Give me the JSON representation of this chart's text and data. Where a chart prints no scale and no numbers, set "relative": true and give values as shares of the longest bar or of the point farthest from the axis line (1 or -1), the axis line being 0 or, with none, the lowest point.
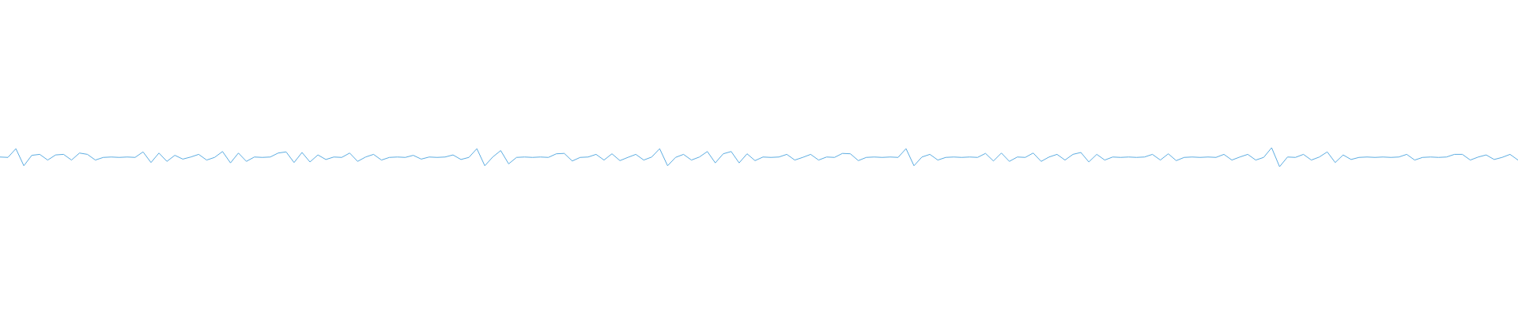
{
  "chart_data": {
    "type": "line",
    "relative": true,
    "categories": [
      null,
      null,
      null,
      null,
      null,
      null,
      null,
      null,
      null,
      null,
      null,
      null,
      null,
      null,
      null,
      null,
      null,
      null,
      null,
      null,
      null,
      null,
      null,
      null,
      null,
      null,
      null,
      null,
      null,
      null,
      null,
      null,
      null,
      null,
      null,
      null,
      null,
      null,
      null,
      null,
      null,
      null,
      null,
      null,
      null,
      null,
      null,
      null,
      null,
      null,
      null,
      null,
      null,
      null,
      null,
      null,
      null,
      null,
      null,
      null,
      null,
      null,
      null,
      null,
      null,
      null,
      null,
      null,
      null,
      null,
      null,
      null,
      null,
      null,
      null,
      null,
      null,
      null,
      null,
      null,
      null,
      null,
      null,
      null,
      null,
      null,
      null,
      null,
      null,
      null,
      null,
      null,
      null,
      null,
      null,
      null,
      null,
      null,
      null,
      null,
      null,
      null,
      null,
      null,
      null,
      null,
      null,
      null,
      null,
      null,
      null,
      null,
      null,
      null,
      null,
      null,
      null,
      null,
      null,
      null,
      null,
      null,
      null,
      null,
      null,
      null,
      null,
      null,
      null,
      null,
      null,
      null,
      null,
      null,
      null,
      null,
      null,
      null,
      null,
      null,
      null,
      null,
      null,
      null,
      null,
      null,
      null,
      null,
      null,
      null,
      null,
      null,
      null,
      null,
      null,
      null,
      null,
      null,
      null,
      null,
      null,
      null,
      null,
      null,
      null,
      null,
      null,
      null,
      null,
      null,
      null,
      null,
      null,
      null,
      null,
      null,
      null,
      null,
      null,
      null,
      null,
      null,
      null,
      null,
      null,
      null,
      null,
      null,
      null,
      null,
      null,
      null
    ],
    "series": [
      {
        "color": "#5dade2",
        "values": [
          0.51,
          0.49,
          0.95,
          0.05,
          0.6,
          0.65,
          0.35,
          0.62,
          0.65,
          0.35,
          0.72,
          0.65,
          0.35,
          0.49,
          0.51,
          0.49,
          0.51,
          0.49,
          0.78,
          0.22,
          0.72,
          0.28,
          0.6,
          0.4,
          0.51,
          0.65,
          0.35,
          0.49,
          0.8,
          0.2,
          0.72,
          0.28,
          0.51,
          0.49,
          0.51,
          0.72,
          0.78,
          0.22,
          0.75,
          0.25,
          0.62,
          0.38,
          0.51,
          0.49,
          0.72,
          0.28,
          0.51,
          0.65,
          0.35,
          0.49,
          0.51,
          0.49,
          0.6,
          0.4,
          0.51,
          0.49,
          0.51,
          0.62,
          0.38,
          0.49,
          0.95,
          0.05,
          0.51,
          0.85,
          0.15,
          0.49,
          0.51,
          0.49,
          0.51,
          0.49,
          0.68,
          0.7,
          0.3,
          0.49,
          0.51,
          0.65,
          0.35,
          0.68,
          0.32,
          0.49,
          0.65,
          0.35,
          0.51,
          0.95,
          0.05,
          0.49,
          0.65,
          0.35,
          0.51,
          0.8,
          0.2,
          0.68,
          0.8,
          0.2,
          0.68,
          0.32,
          0.51,
          0.49,
          0.51,
          0.65,
          0.35,
          0.49,
          0.65,
          0.35,
          0.51,
          0.49,
          0.7,
          0.68,
          0.32,
          0.49,
          0.51,
          0.49,
          0.51,
          0.49,
          0.95,
          0.05,
          0.51,
          0.65,
          0.35,
          0.49,
          0.51,
          0.49,
          0.51,
          0.49,
          0.7,
          0.3,
          0.72,
          0.28,
          0.51,
          0.49,
          0.72,
          0.28,
          0.51,
          0.65,
          0.35,
          0.65,
          0.75,
          0.25,
          0.65,
          0.35,
          0.51,
          0.49,
          0.51,
          0.49,
          0.51,
          0.65,
          0.35,
          0.68,
          0.32,
          0.49,
          0.51,
          0.49,
          0.51,
          0.49,
          0.65,
          0.35,
          0.51,
          0.65,
          0.35,
          0.49,
          1,
          0,
          0.51,
          0.49,
          0.65,
          0.35,
          0.51,
          0.78,
          0.22,
          0.62,
          0.38,
          0.49,
          0.51,
          0.49,
          0.51,
          0.49,
          0.51,
          0.65,
          0.35,
          0.49,
          0.51,
          0.49,
          0.51,
          0.65,
          0.65,
          0.35,
          0.51,
          0.62,
          0.38,
          0.49,
          0.65,
          0.35
        ]
      }
    ]
  }
}
